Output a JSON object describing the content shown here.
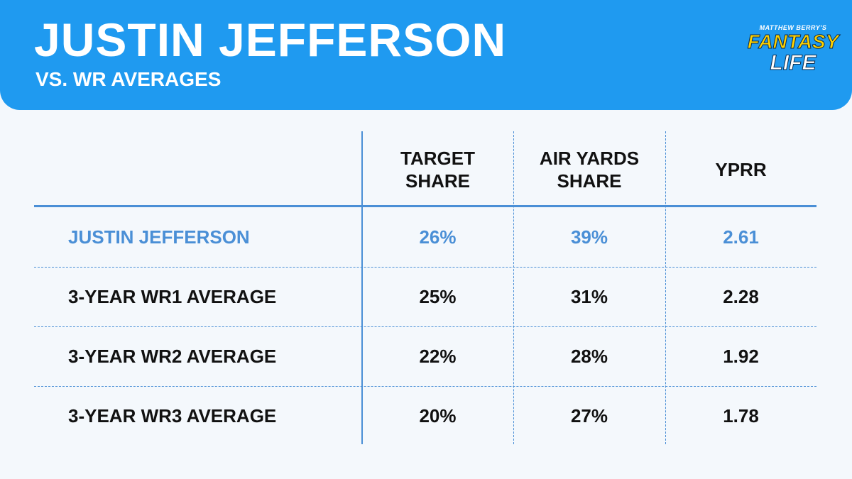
{
  "header": {
    "title": "JUSTIN JEFFERSON",
    "subtitle": "VS. WR AVERAGES"
  },
  "logo": {
    "top": "MATTHEW BERRY'S",
    "middle": "FANTASY",
    "bottom": "LIFE"
  },
  "table": {
    "columns": [
      "TARGET SHARE",
      "AIR YARDS SHARE",
      "YPRR"
    ],
    "rows": [
      [
        "JUSTIN JEFFERSON",
        "26%",
        "39%",
        "2.61"
      ],
      [
        "3-YEAR WR1 AVERAGE",
        "25%",
        "31%",
        "2.28"
      ],
      [
        "3-YEAR WR2 AVERAGE",
        "22%",
        "28%",
        "1.92"
      ],
      [
        "3-YEAR WR3 AVERAGE",
        "20%",
        "27%",
        "1.78"
      ]
    ]
  }
}
